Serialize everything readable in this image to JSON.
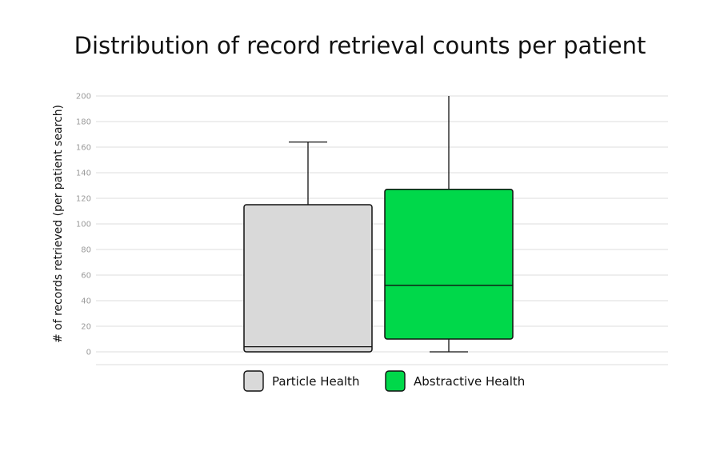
{
  "chart_data": {
    "type": "box",
    "title": "Distribution of record retrieval counts per patient",
    "xlabel": "",
    "ylabel": "# of records retrieved (per patient search)",
    "ylim": [
      -10,
      200
    ],
    "yticks": [
      0,
      20,
      40,
      60,
      80,
      100,
      120,
      140,
      160,
      180,
      200
    ],
    "grid": true,
    "legend_position": "bottom",
    "series": [
      {
        "name": "Particle Health",
        "color": "#d9d9d9",
        "min": 0,
        "q1": 0,
        "median": 4,
        "q3": 115,
        "max": 164
      },
      {
        "name": "Abstractive Health",
        "color": "#00d84a",
        "min": 0,
        "q1": 10,
        "median": 52,
        "q3": 127,
        "max": 200
      }
    ]
  }
}
